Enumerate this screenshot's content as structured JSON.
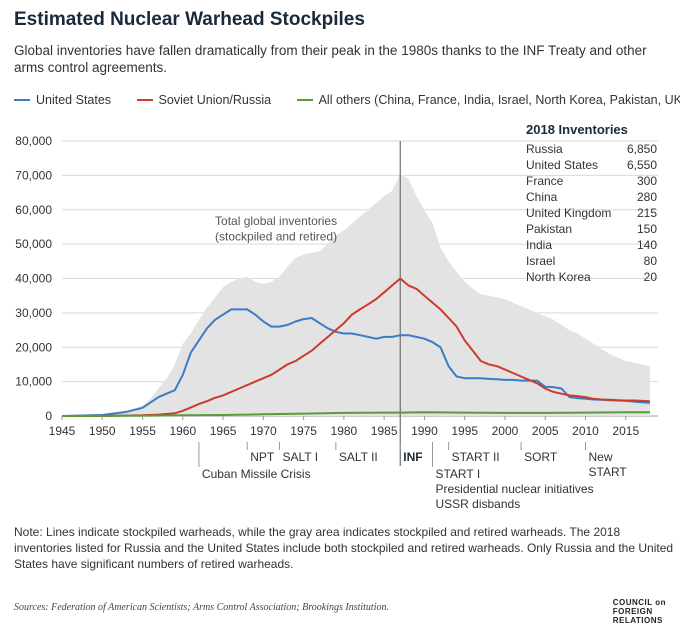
{
  "title": "Estimated Nuclear Warhead Stockpiles",
  "subtitle": "Global inventories have fallen dramatically from their peak in the 1980s thanks to the INF Treaty and other arms control agreements.",
  "legend": [
    {
      "label": "United States",
      "color": "#3b7dc4"
    },
    {
      "label": "Soviet Union/Russia",
      "color": "#cc3b2b"
    },
    {
      "label": "All others (China, France, India, Israel, North Korea, Pakistan, UK)",
      "color": "#5a9a3a"
    }
  ],
  "chart_data": {
    "type": "line",
    "xlim": [
      1945,
      2019
    ],
    "ylim": [
      0,
      80000
    ],
    "x_ticks": [
      "1945",
      "1950",
      "1955",
      "1960",
      "1965",
      "1970",
      "1975",
      "1980",
      "1985",
      "1990",
      "1995",
      "2000",
      "2005",
      "2010",
      "2015"
    ],
    "y_ticks": [
      "80,000",
      "70,000",
      "60,000",
      "50,000",
      "40,000",
      "30,000",
      "20,000",
      "10,000",
      "0"
    ],
    "grid": "horizontal",
    "legend_position": "top",
    "area": {
      "label": "Total global inventories (stockpiled and retired)",
      "label_lines": [
        "Total global inventories",
        "(stockpiled and retired)"
      ],
      "color": "#e3e3e3",
      "x": [
        1945,
        1950,
        1953,
        1955,
        1956,
        1957,
        1958,
        1959,
        1960,
        1961,
        1962,
        1963,
        1964,
        1965,
        1966,
        1967,
        1968,
        1969,
        1970,
        1971,
        1972,
        1973,
        1974,
        1975,
        1976,
        1977,
        1978,
        1979,
        1980,
        1981,
        1982,
        1983,
        1984,
        1985,
        1986,
        1987,
        1988,
        1989,
        1990,
        1991,
        1992,
        1993,
        1994,
        1995,
        1996,
        1997,
        1998,
        1999,
        2000,
        2001,
        2002,
        2003,
        2004,
        2005,
        2006,
        2007,
        2008,
        2009,
        2010,
        2011,
        2012,
        2013,
        2014,
        2015,
        2016,
        2017,
        2018
      ],
      "y": [
        0,
        300,
        1500,
        3000,
        5000,
        8000,
        11000,
        15000,
        21000,
        24000,
        28000,
        31500,
        34500,
        37500,
        39000,
        40000,
        40500,
        39000,
        38500,
        39000,
        40500,
        43500,
        46000,
        47000,
        47500,
        48000,
        50000,
        52500,
        54000,
        56000,
        58000,
        60000,
        62000,
        64000,
        65500,
        70500,
        69000,
        64000,
        60000,
        56000,
        49000,
        45000,
        42000,
        39000,
        37000,
        35500,
        35000,
        34500,
        34000,
        33000,
        32000,
        31000,
        30000,
        29000,
        28000,
        26500,
        25000,
        24000,
        22500,
        21000,
        19500,
        18000,
        17000,
        16000,
        15500,
        15000,
        14500
      ]
    },
    "series": [
      {
        "name": "United States",
        "color": "#3b7dc4",
        "x": [
          1945,
          1950,
          1953,
          1955,
          1957,
          1959,
          1960,
          1961,
          1962,
          1963,
          1964,
          1965,
          1966,
          1967,
          1968,
          1969,
          1970,
          1971,
          1972,
          1973,
          1974,
          1975,
          1976,
          1977,
          1978,
          1979,
          1980,
          1981,
          1982,
          1983,
          1984,
          1985,
          1986,
          1987,
          1988,
          1989,
          1990,
          1991,
          1992,
          1993,
          1994,
          1995,
          1996,
          1997,
          1998,
          1999,
          2000,
          2001,
          2002,
          2003,
          2004,
          2005,
          2006,
          2007,
          2008,
          2009,
          2010,
          2011,
          2012,
          2013,
          2014,
          2015,
          2016,
          2017,
          2018
        ],
        "y": [
          0,
          300,
          1200,
          2400,
          5500,
          7500,
          12000,
          18500,
          22000,
          25500,
          28000,
          29500,
          31000,
          31000,
          31000,
          29500,
          27500,
          26000,
          26000,
          26500,
          27500,
          28200,
          28500,
          27000,
          25500,
          24500,
          24000,
          24000,
          23500,
          23000,
          22500,
          23000,
          23000,
          23500,
          23500,
          23000,
          22500,
          21500,
          20000,
          14500,
          11500,
          11000,
          11000,
          11000,
          10800,
          10700,
          10500,
          10500,
          10300,
          10300,
          10300,
          8500,
          8400,
          8000,
          5500,
          5200,
          5000,
          4800,
          4700,
          4600,
          4500,
          4400,
          4200,
          4000,
          3800
        ]
      },
      {
        "name": "Soviet Union/Russia",
        "color": "#cc3b2b",
        "x": [
          1945,
          1950,
          1955,
          1957,
          1959,
          1960,
          1961,
          1962,
          1963,
          1964,
          1965,
          1966,
          1967,
          1968,
          1969,
          1970,
          1971,
          1972,
          1973,
          1974,
          1975,
          1976,
          1977,
          1978,
          1979,
          1980,
          1981,
          1982,
          1983,
          1984,
          1985,
          1986,
          1987,
          1988,
          1989,
          1990,
          1991,
          1992,
          1993,
          1994,
          1995,
          1996,
          1997,
          1998,
          1999,
          2000,
          2001,
          2002,
          2003,
          2004,
          2005,
          2006,
          2007,
          2008,
          2009,
          2010,
          2011,
          2012,
          2013,
          2014,
          2015,
          2016,
          2017,
          2018
        ],
        "y": [
          0,
          0,
          200,
          400,
          800,
          1500,
          2500,
          3500,
          4300,
          5300,
          6000,
          7000,
          8000,
          9000,
          10000,
          11000,
          12000,
          13500,
          15000,
          16000,
          17500,
          19000,
          21000,
          23000,
          25000,
          27000,
          29500,
          31000,
          32500,
          34000,
          36000,
          38000,
          40000,
          38000,
          37000,
          35000,
          33000,
          31000,
          28500,
          26000,
          22000,
          19000,
          16000,
          15000,
          14500,
          13500,
          12500,
          11500,
          10500,
          9500,
          8000,
          7000,
          6500,
          6000,
          5800,
          5500,
          5000,
          4800,
          4700,
          4600,
          4500,
          4500,
          4400,
          4300
        ]
      },
      {
        "name": "All others (China, France, India, Israel, North Korea, Pakistan, UK)",
        "color": "#5a9a3a",
        "x": [
          1945,
          1953,
          1955,
          1960,
          1965,
          1970,
          1975,
          1980,
          1985,
          1987,
          1990,
          1995,
          2000,
          2005,
          2010,
          2015,
          2018
        ],
        "y": [
          0,
          50,
          100,
          200,
          300,
          500,
          700,
          900,
          1000,
          1000,
          1100,
          1000,
          900,
          900,
          1000,
          1100,
          1100
        ]
      }
    ],
    "inventories": {
      "title": "2018 Inventories",
      "rows": [
        {
          "country": "Russia",
          "value": "6,850"
        },
        {
          "country": "United States",
          "value": "6,550"
        },
        {
          "country": "France",
          "value": "300"
        },
        {
          "country": "China",
          "value": "280"
        },
        {
          "country": "United Kingdom",
          "value": "215"
        },
        {
          "country": "Pakistan",
          "value": "150"
        },
        {
          "country": "India",
          "value": "140"
        },
        {
          "country": "Israel",
          "value": "80"
        },
        {
          "country": "North Korea",
          "value": "20"
        }
      ]
    },
    "vertical_marker_year": 1987,
    "events": [
      {
        "year": 1962,
        "row": 2,
        "lines": [
          "Cuban Missile Crisis"
        ],
        "bold": false
      },
      {
        "year": 1968,
        "row": 1,
        "lines": [
          "NPT"
        ],
        "bold": false
      },
      {
        "year": 1972,
        "row": 1,
        "lines": [
          "SALT I"
        ],
        "bold": false
      },
      {
        "year": 1979,
        "row": 1,
        "lines": [
          "SALT II"
        ],
        "bold": false
      },
      {
        "year": 1987,
        "row": 1,
        "lines": [
          "INF"
        ],
        "bold": true
      },
      {
        "year": 1991,
        "row": 2,
        "lines": [
          "START I",
          "Presidential nuclear initiatives",
          "USSR disbands"
        ],
        "bold": false
      },
      {
        "year": 1993,
        "row": 1,
        "lines": [
          "START II"
        ],
        "bold": false
      },
      {
        "year": 2002,
        "row": 1,
        "lines": [
          "SORT"
        ],
        "bold": false
      },
      {
        "year": 2010,
        "row": 1,
        "lines": [
          "New",
          "START"
        ],
        "bold": false
      }
    ]
  },
  "note": "Note: Lines indicate stockpiled warheads, while the gray area indicates stockpiled and retired warheads. The 2018 inventories listed for Russia and the United States include both stockpiled and retired warheads. Only Russia and the United States have significant numbers of retired warheads.",
  "sources_label": "Sources:",
  "sources": "Federation of American Scientists; Arms Control Association; Brookings Institution.",
  "logo": [
    "COUNCIL on",
    "FOREIGN",
    "RELATIONS"
  ]
}
